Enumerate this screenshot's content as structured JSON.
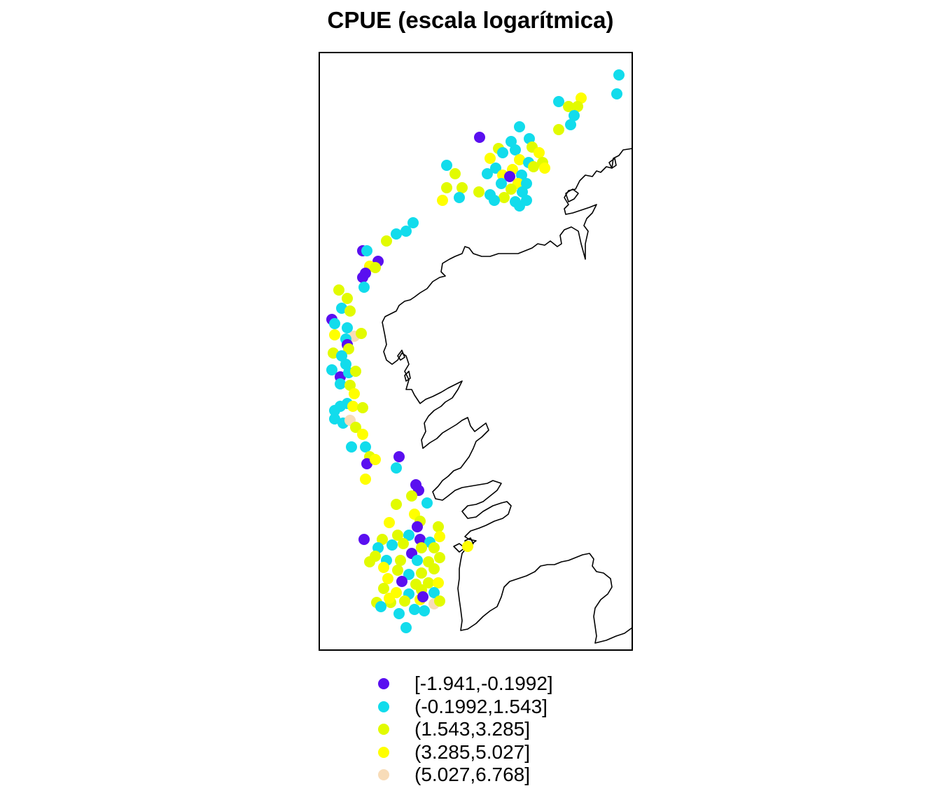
{
  "title": "CPUE (escala logarítmica)",
  "colors": {
    "c1": "#5a0ff0",
    "c2": "#12dcec",
    "c3": "#e2fb00",
    "c4": "#ffff00",
    "c5": "#f8dcb8",
    "coast": "#000000",
    "frame": "#000000"
  },
  "legend": [
    {
      "label": "[-1.941,-0.1992]",
      "color_key": "c1"
    },
    {
      "label": "(-0.1992,1.543]",
      "color_key": "c2"
    },
    {
      "label": "(1.543,3.285]",
      "color_key": "c3"
    },
    {
      "label": "(3.285,5.027]",
      "color_key": "c4"
    },
    {
      "label": "(5.027,6.768]",
      "color_key": "c5"
    }
  ]
}
